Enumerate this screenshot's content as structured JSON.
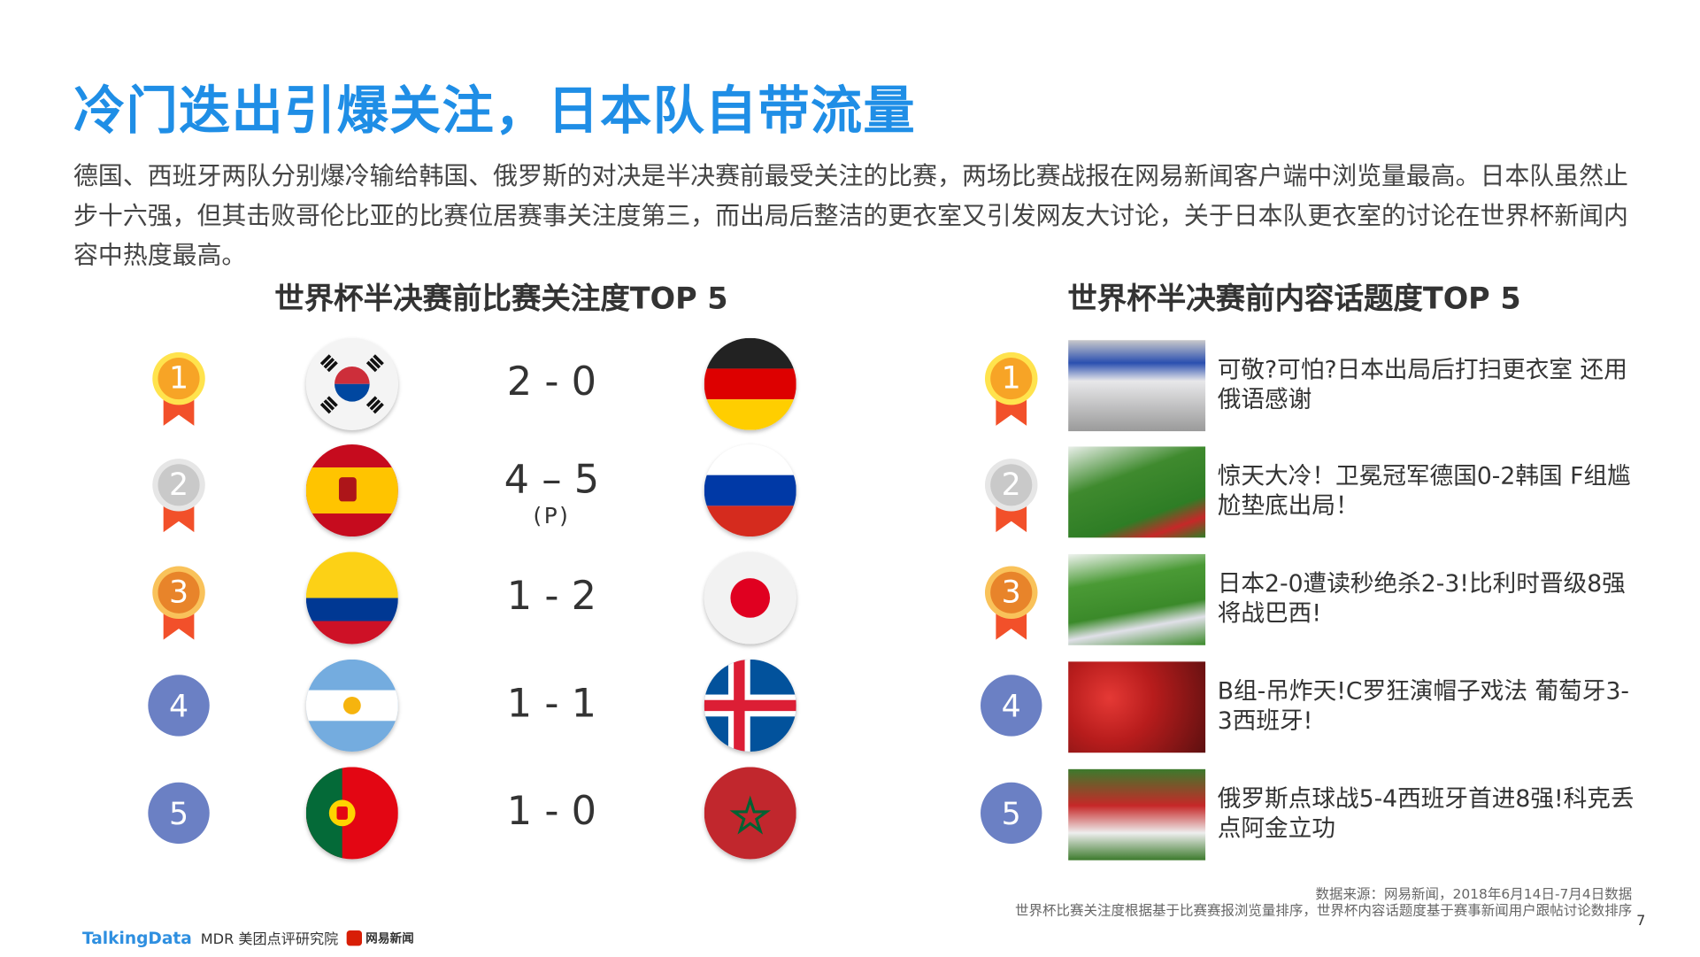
{
  "title": "冷门迭出引爆关注，日本队自带流量",
  "paragraph": "德国、西班牙两队分别爆冷输给韩国、俄罗斯的对决是半决赛前最受关注的比赛，两场比赛战报在网易新闻客户端中浏览量最高。日本队虽然止步十六强，但其击败哥伦比亚的比赛位居赛事关注度第三，而出局后整洁的更衣室又引发网友大讨论，关于日本队更衣室的讨论在世界杯新闻内容中热度最高。",
  "left": {
    "title": "世界杯半决赛前比赛关注度TOP 5",
    "matches": [
      {
        "rank": "1",
        "home": "Korea",
        "score": "2 - 0",
        "note": "",
        "away": "Germany",
        "medal": "gold"
      },
      {
        "rank": "2",
        "home": "Spain",
        "score": "4 – 5",
        "note": "(P)",
        "away": "Russia",
        "medal": "silver"
      },
      {
        "rank": "3",
        "home": "Colombia",
        "score": "1 - 2",
        "note": "",
        "away": "Japan",
        "medal": "bronze"
      },
      {
        "rank": "4",
        "home": "Argentina",
        "score": "1 - 1",
        "note": "",
        "away": "Iceland",
        "medal": "none"
      },
      {
        "rank": "5",
        "home": "Portugal",
        "score": "1 - 0",
        "note": "",
        "away": "Morocco",
        "medal": "none"
      }
    ]
  },
  "right": {
    "title": "世界杯半决赛前内容话题度TOP 5",
    "items": [
      {
        "rank": "1",
        "text": "可敬?可怕?日本出局后打扫更衣室 还用俄语感谢",
        "medal": "gold"
      },
      {
        "rank": "2",
        "text": "惊天大冷！卫冕冠军德国0-2韩国 F组尴尬垫底出局！",
        "medal": "silver"
      },
      {
        "rank": "3",
        "text": "日本2-0遭读秒绝杀2-3!比利时晋级8强将战巴西!",
        "medal": "bronze"
      },
      {
        "rank": "4",
        "text": "B组-吊炸天!C罗狂演帽子戏法 葡萄牙3-3西班牙!",
        "medal": "none"
      },
      {
        "rank": "5",
        "text": "俄罗斯点球战5-4西班牙首进8强!科克丢点阿金立功",
        "medal": "none"
      }
    ]
  },
  "footer": {
    "source": "数据来源：网易新闻，2018年6月14日-7月4日数据",
    "note": "世界杯比赛关注度根据基于比赛赛报浏览量排序，世界杯内容话题度基于赛事新闻用户跟帖讨论数排序",
    "page": "7",
    "logos": [
      "TalkingData",
      "MDR 美团点评研究院",
      "网易新闻"
    ]
  },
  "colors": {
    "title": "#1f8ee6",
    "gold": "#f7a426",
    "silver": "#c9c9c9",
    "bronze": "#e8842a",
    "ribbon": "#f2502a",
    "rank_circle": "#6b80c4"
  }
}
